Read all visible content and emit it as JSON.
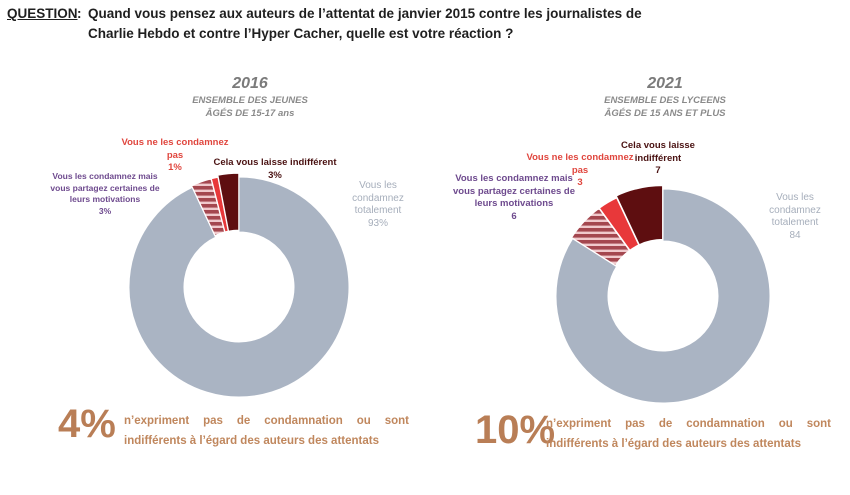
{
  "question": {
    "label": "QUESTION",
    "colon": ":",
    "text": "Quand vous pensez aux auteurs de l’attentat de janvier 2015 contre les journalistes de Charlie Hebdo et contre l’Hyper Cacher, quelle est votre réaction ?"
  },
  "colors": {
    "condamnez_totalement": "#aab4c3",
    "partagez_motivations": "#a4474f",
    "ne_condamnez_pas": "#e8383a",
    "indifferent": "#5e0e10",
    "summary": "#b97e56"
  },
  "chart_data": [
    {
      "type": "pie",
      "variant": "donut",
      "title": "2016",
      "subtitle": [
        "ENSEMBLE DES JEUNES",
        "ÂGÉS DE 15-17 ans"
      ],
      "categories": [
        "Vous les condamnez totalement",
        "Vous les condamnez mais vous partagez certaines de leurs motivations",
        "Vous ne les condamnez pas",
        "Cela vous laisse indifférent"
      ],
      "values": [
        93,
        3,
        1,
        3
      ],
      "unit": "%",
      "labels": [
        {
          "lines": [
            "Vous les",
            "condamnez",
            "totalement",
            "93%"
          ]
        },
        {
          "lines": [
            "Vous les condamnez mais",
            "vous partagez certaines de",
            "leurs motivations",
            "3%"
          ]
        },
        {
          "lines": [
            "Vous ne les condamnez",
            "pas",
            "1%"
          ]
        },
        {
          "lines": [
            "Cela vous laisse indifférent",
            "3%"
          ]
        }
      ],
      "summary": {
        "value": "4%",
        "line1": "n’expriment pas de condamnation ou sont",
        "line2": "indifférents à l’égard des auteurs des attentats"
      }
    },
    {
      "type": "pie",
      "variant": "donut",
      "title": "2021",
      "subtitle": [
        "ENSEMBLE DES LYCEENS",
        "ÂGÉS DE 15 ANS ET PLUS"
      ],
      "categories": [
        "Vous les condamnez totalement",
        "Vous les condamnez mais vous partagez certaines de leurs motivations",
        "Vous ne les condamnez pas",
        "Cela vous laisse indifférent"
      ],
      "values": [
        84,
        6,
        3,
        7
      ],
      "unit": "",
      "labels": [
        {
          "lines": [
            "Vous les",
            "condamnez",
            "totalement",
            "84"
          ]
        },
        {
          "lines": [
            "Vous les condamnez mais",
            "vous partagez certaines de",
            "leurs motivations",
            "6"
          ]
        },
        {
          "lines": [
            "Vous ne les condamnez",
            "pas",
            "3"
          ]
        },
        {
          "lines": [
            "Cela vous laisse",
            "indifférent",
            "7"
          ]
        }
      ],
      "summary": {
        "value": "10%",
        "line1": "n’expriment pas de condamnation ou sont",
        "line2": "indifférents à l’égard des auteurs des attentats"
      }
    }
  ]
}
